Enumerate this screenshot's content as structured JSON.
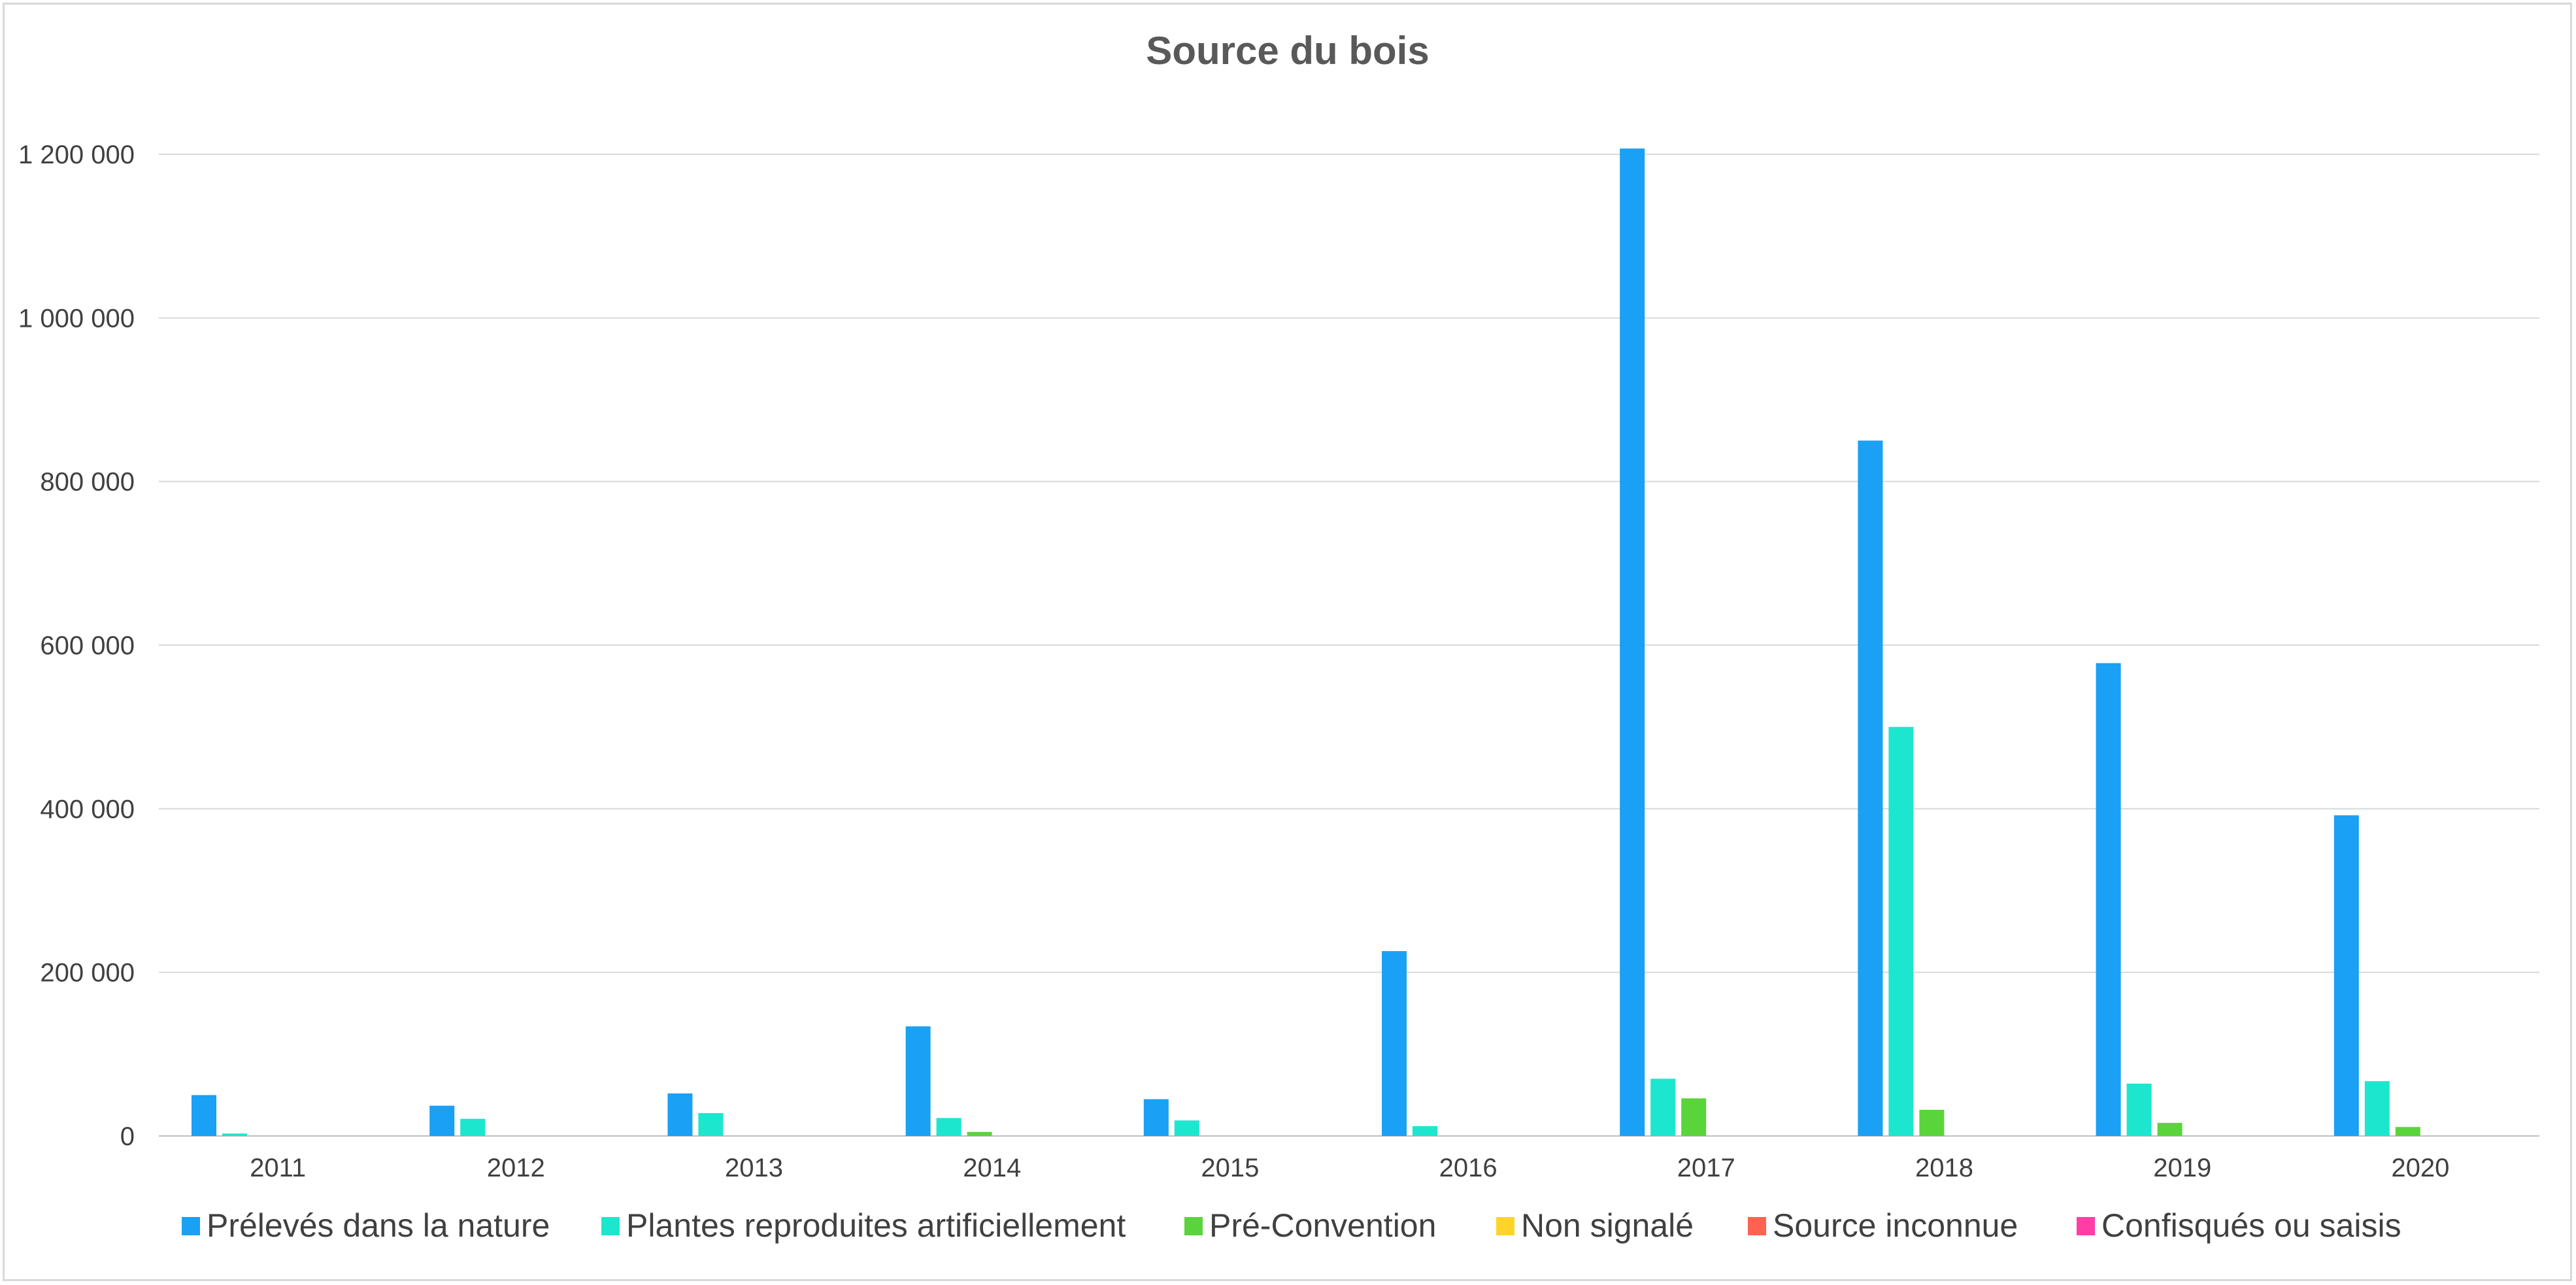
{
  "chart_data": {
    "type": "bar",
    "title": "Source du bois",
    "xlabel": "",
    "ylabel": "",
    "categories": [
      "2011",
      "2012",
      "2013",
      "2014",
      "2015",
      "2016",
      "2017",
      "2018",
      "2019",
      "2020"
    ],
    "series": [
      {
        "name": "Prélevés dans la nature",
        "color": "#1aa0f5",
        "values": [
          50000,
          37000,
          52000,
          134000,
          45000,
          226000,
          1207000,
          850000,
          578000,
          392000
        ]
      },
      {
        "name": "Plantes reproduites artificiellement",
        "color": "#1de6cf",
        "values": [
          3000,
          21000,
          28000,
          22000,
          19000,
          12000,
          70000,
          500000,
          64000,
          67000
        ]
      },
      {
        "name": "Pré-Convention",
        "color": "#5ad43b",
        "values": [
          0,
          0,
          0,
          5000,
          0,
          0,
          46000,
          32000,
          16000,
          11000
        ]
      },
      {
        "name": "Non signalé",
        "color": "#ffd42a",
        "values": [
          0,
          0,
          0,
          0,
          0,
          0,
          0,
          0,
          0,
          0
        ]
      },
      {
        "name": "Source inconnue",
        "color": "#ff6250",
        "values": [
          0,
          0,
          0,
          0,
          0,
          0,
          0,
          0,
          0,
          0
        ]
      },
      {
        "name": "Confisqués ou saisis",
        "color": "#ff3ea5",
        "values": [
          0,
          0,
          0,
          0,
          0,
          0,
          0,
          0,
          0,
          0
        ]
      }
    ],
    "ylim": [
      0,
      1200000
    ],
    "yticks": [
      0,
      200000,
      400000,
      600000,
      800000,
      1000000,
      1200000
    ],
    "ytick_labels": [
      "0",
      "200 000",
      "400 000",
      "600 000",
      "800 000",
      "1 000 000",
      "1 200 000"
    ],
    "grid": true,
    "legend_position": "bottom",
    "colors": {
      "grid": "#d9d9d9",
      "axis": "#bfbfbf",
      "text": "#404040",
      "title": "#595959"
    }
  }
}
